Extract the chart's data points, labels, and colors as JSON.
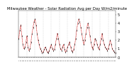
{
  "title": "Milwaukee Weather - Solar Radiation Avg per Day W/m2/minute",
  "ylim": [
    0,
    5.5
  ],
  "background_color": "#ffffff",
  "plot_area_color": "#ffffff",
  "grid_color": "#bbbbbb",
  "line_color": "#cc0000",
  "tick_color": "#000000",
  "x_values": [
    0,
    1,
    2,
    3,
    4,
    5,
    6,
    7,
    8,
    9,
    10,
    11,
    12,
    13,
    14,
    15,
    16,
    17,
    18,
    19,
    20,
    21,
    22,
    23,
    24,
    25,
    26,
    27,
    28,
    29,
    30,
    31,
    32,
    33,
    34,
    35,
    36,
    37,
    38,
    39,
    40,
    41,
    42,
    43,
    44,
    45,
    46,
    47,
    48,
    49,
    50,
    51,
    52,
    53,
    54,
    55,
    56,
    57,
    58,
    59,
    60,
    61,
    62,
    63,
    64,
    65,
    66,
    67,
    68,
    69,
    70,
    71,
    72,
    73,
    74,
    75,
    76,
    77,
    78,
    79,
    80,
    81,
    82,
    83,
    84,
    85,
    86,
    87,
    88,
    89,
    90,
    91,
    92,
    93,
    94,
    95
  ],
  "y_values": [
    2.2,
    3.2,
    3.8,
    2.5,
    1.5,
    1.0,
    1.2,
    1.8,
    2.5,
    1.2,
    0.8,
    1.0,
    1.8,
    2.8,
    3.5,
    4.2,
    4.5,
    3.8,
    2.8,
    2.0,
    1.5,
    1.0,
    0.8,
    0.5,
    0.6,
    0.9,
    1.2,
    0.9,
    0.6,
    0.5,
    0.8,
    1.2,
    1.5,
    1.0,
    0.8,
    0.9,
    1.5,
    2.2,
    2.8,
    2.2,
    1.5,
    1.0,
    0.8,
    1.2,
    1.5,
    0.9,
    0.6,
    0.8,
    1.2,
    1.5,
    1.8,
    1.2,
    0.8,
    0.6,
    0.9,
    1.5,
    2.2,
    3.2,
    4.0,
    4.5,
    4.2,
    3.5,
    2.8,
    2.0,
    1.5,
    2.0,
    2.8,
    3.5,
    4.0,
    3.5,
    2.5,
    1.8,
    1.2,
    0.9,
    1.5,
    2.2,
    2.0,
    1.5,
    1.2,
    0.9,
    1.5,
    2.2,
    2.8,
    2.0,
    1.5,
    1.2,
    1.0,
    0.8,
    1.0,
    1.5,
    2.0,
    1.5,
    1.0,
    0.8,
    0.6,
    0.5
  ],
  "ytick_labels": [
    "5",
    "4",
    "3",
    "2",
    "1",
    "0"
  ],
  "ytick_values": [
    5,
    4,
    3,
    2,
    1,
    0
  ],
  "font_size": 3.5,
  "title_font_size": 3.8,
  "vgrid_every": 8,
  "n_xticks": 96,
  "xtick_show_every": 4
}
